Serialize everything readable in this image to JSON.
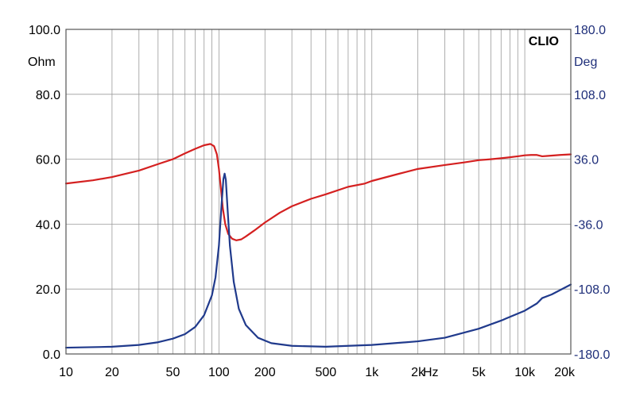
{
  "chart_data": {
    "type": "line",
    "brand": "CLIO",
    "xscale": "log",
    "xlim": [
      10,
      20000
    ],
    "xticks": [
      {
        "v": 10,
        "label": "10"
      },
      {
        "v": 20,
        "label": "20"
      },
      {
        "v": 50,
        "label": "50"
      },
      {
        "v": 100,
        "label": "100"
      },
      {
        "v": 200,
        "label": "200"
      },
      {
        "v": 500,
        "label": "500"
      },
      {
        "v": 1000,
        "label": "1k"
      },
      {
        "v": 2000,
        "label": "2k"
      },
      {
        "v": 5000,
        "label": "5k"
      },
      {
        "v": 10000,
        "label": "10k"
      },
      {
        "v": 20000,
        "label": "20k"
      }
    ],
    "xunit": "Hz",
    "ylim_left": [
      0,
      100
    ],
    "yticks_left": [
      "0.0",
      "20.0",
      "40.0",
      "60.0",
      "80.0",
      "100.0"
    ],
    "yunit_left": "Ohm",
    "ylim_right": [
      -180,
      180
    ],
    "yticks_right": [
      "-180.0",
      "-108.0",
      "-36.0",
      "36.0",
      "108.0",
      "180.0"
    ],
    "yunit_right": "Deg",
    "grid": true,
    "colors": {
      "impedance": "#d42020",
      "phase": "#203a8c",
      "right_axis": "#1f2f7a",
      "grid": "#9a9a9a"
    },
    "series": [
      {
        "axis": "left",
        "color": "#d42020",
        "points": [
          [
            10,
            52.5
          ],
          [
            15,
            53.5
          ],
          [
            20,
            54.5
          ],
          [
            30,
            56.5
          ],
          [
            40,
            58.5
          ],
          [
            50,
            60.0
          ],
          [
            60,
            61.8
          ],
          [
            70,
            63.2
          ],
          [
            80,
            64.3
          ],
          [
            88,
            64.7
          ],
          [
            93,
            64.0
          ],
          [
            97,
            61.5
          ],
          [
            100,
            57.0
          ],
          [
            103,
            51.0
          ],
          [
            106,
            45.0
          ],
          [
            110,
            40.0
          ],
          [
            115,
            37.0
          ],
          [
            122,
            35.5
          ],
          [
            130,
            35.0
          ],
          [
            140,
            35.3
          ],
          [
            150,
            36.2
          ],
          [
            170,
            38.0
          ],
          [
            200,
            40.5
          ],
          [
            250,
            43.5
          ],
          [
            300,
            45.5
          ],
          [
            400,
            47.8
          ],
          [
            500,
            49.2
          ],
          [
            700,
            51.5
          ],
          [
            900,
            52.5
          ],
          [
            1000,
            53.3
          ],
          [
            1500,
            55.5
          ],
          [
            2000,
            57.0
          ],
          [
            3000,
            58.2
          ],
          [
            4000,
            59.0
          ],
          [
            5000,
            59.7
          ],
          [
            6000,
            60.0
          ],
          [
            7000,
            60.3
          ],
          [
            8000,
            60.6
          ],
          [
            9000,
            60.9
          ],
          [
            10000,
            61.2
          ],
          [
            11000,
            61.3
          ],
          [
            12000,
            61.3
          ],
          [
            13000,
            60.9
          ],
          [
            14000,
            61.0
          ],
          [
            17000,
            61.3
          ],
          [
            20000,
            61.5
          ]
        ]
      },
      {
        "axis": "right",
        "color": "#203a8c",
        "points": [
          [
            10,
            -173.0
          ],
          [
            20,
            -172.0
          ],
          [
            30,
            -170.0
          ],
          [
            40,
            -167.0
          ],
          [
            50,
            -163.0
          ],
          [
            60,
            -158.0
          ],
          [
            70,
            -150.0
          ],
          [
            80,
            -137.0
          ],
          [
            90,
            -115.0
          ],
          [
            95,
            -95.0
          ],
          [
            100,
            -60.0
          ],
          [
            104,
            -15.0
          ],
          [
            107,
            14.0
          ],
          [
            109,
            20.0
          ],
          [
            111,
            13.0
          ],
          [
            114,
            -20.0
          ],
          [
            118,
            -60.0
          ],
          [
            125,
            -100.0
          ],
          [
            135,
            -130.0
          ],
          [
            150,
            -148.0
          ],
          [
            180,
            -162.0
          ],
          [
            220,
            -168.0
          ],
          [
            300,
            -171.0
          ],
          [
            500,
            -172.0
          ],
          [
            700,
            -171.0
          ],
          [
            1000,
            -170.0
          ],
          [
            2000,
            -166.0
          ],
          [
            3000,
            -162.0
          ],
          [
            5000,
            -152.0
          ],
          [
            7000,
            -143.0
          ],
          [
            10000,
            -132.0
          ],
          [
            12000,
            -124.0
          ],
          [
            13000,
            -118.0
          ],
          [
            15000,
            -114.0
          ],
          [
            20000,
            -103.0
          ]
        ]
      }
    ]
  }
}
